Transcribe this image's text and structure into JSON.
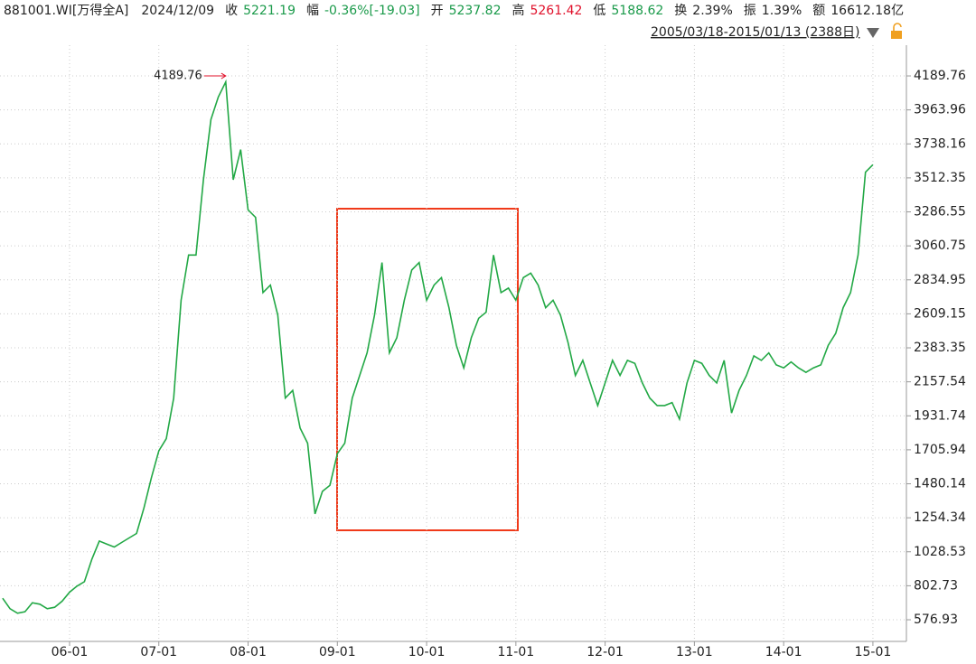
{
  "header": {
    "code": "881001.WI[万得全A]",
    "date": "2024/12/09",
    "items": [
      {
        "label": "收",
        "value": "5221.19",
        "color": "#1a9a4a"
      },
      {
        "label": "幅",
        "value": "-0.36%[-19.03]",
        "color": "#1a9a4a"
      },
      {
        "label": "开",
        "value": "5237.82",
        "color": "#1a9a4a"
      },
      {
        "label": "高",
        "value": "5261.42",
        "color": "#e0102a"
      },
      {
        "label": "低",
        "value": "5188.62",
        "color": "#1a9a4a"
      },
      {
        "label": "换",
        "value": "2.39%",
        "color": "#222222"
      },
      {
        "label": "振",
        "value": "1.39%",
        "color": "#222222"
      },
      {
        "label": "额",
        "value": "16612.18亿",
        "color": "#222222"
      }
    ],
    "range": "2005/03/18-2015/01/13 (2388日)"
  },
  "chart_data": {
    "type": "line",
    "categories": [
      null,
      null,
      null,
      null,
      null,
      null,
      null,
      null,
      null,
      "06-01",
      null,
      null,
      null,
      null,
      null,
      null,
      null,
      null,
      null,
      null,
      null,
      "07-01",
      null,
      null,
      null,
      null,
      null,
      null,
      null,
      null,
      null,
      null,
      null,
      "08-01",
      null,
      null,
      null,
      null,
      null,
      null,
      null,
      null,
      null,
      null,
      null,
      "09-01",
      null,
      null,
      null,
      null,
      null,
      null,
      null,
      null,
      null,
      null,
      null,
      "10-01",
      null,
      null,
      null,
      null,
      null,
      null,
      null,
      null,
      null,
      null,
      null,
      "11-01",
      null,
      null,
      null,
      null,
      null,
      null,
      null,
      null,
      null,
      null,
      null,
      "12-01",
      null,
      null,
      null,
      null,
      null,
      null,
      null,
      null,
      null,
      null,
      null,
      "13-01",
      null,
      null,
      null,
      null,
      null,
      null,
      null,
      null,
      null,
      null,
      null,
      "14-01",
      null,
      null,
      null,
      null,
      null,
      null,
      null,
      null,
      null,
      null,
      null,
      "15-01"
    ],
    "values": [
      720,
      650,
      620,
      630,
      690,
      680,
      650,
      660,
      700,
      760,
      800,
      830,
      980,
      1100,
      1080,
      1060,
      1090,
      1120,
      1150,
      1320,
      1520,
      1700,
      1780,
      2050,
      2700,
      3000,
      3000,
      3500,
      3900,
      4050,
      4150,
      3500,
      3700,
      3300,
      3250,
      2750,
      2800,
      2600,
      2050,
      2100,
      1850,
      1750,
      1280,
      1430,
      1470,
      1680,
      1750,
      2050,
      2200,
      2350,
      2600,
      2950,
      2350,
      2450,
      2700,
      2900,
      2950,
      2700,
      2800,
      2850,
      2650,
      2400,
      2250,
      2450,
      2580,
      2620,
      3000,
      2750,
      2780,
      2700,
      2850,
      2880,
      2800,
      2650,
      2700,
      2600,
      2420,
      2200,
      2300,
      2150,
      2000,
      2150,
      2300,
      2200,
      2300,
      2280,
      2150,
      2050,
      2000,
      2000,
      2020,
      1910,
      2150,
      2300,
      2280,
      2200,
      2150,
      2300,
      1950,
      2100,
      2200,
      2330,
      2300,
      2350,
      2270,
      2250,
      2290,
      2250,
      2220,
      2250,
      2270,
      2400,
      2480,
      2650,
      2750,
      3000,
      3550,
      3600
    ],
    "color": "#22a845",
    "ylim": [
      433,
      4394
    ],
    "yticks": [
      576.93,
      802.73,
      1028.53,
      1254.34,
      1480.14,
      1705.94,
      1931.74,
      2157.54,
      2383.35,
      2609.15,
      2834.95,
      3060.75,
      3286.55,
      3512.35,
      3738.16,
      3963.96,
      4189.76
    ],
    "grid": true,
    "max_annotation": 4189.76,
    "max_annotation_color": "#e0102a"
  }
}
